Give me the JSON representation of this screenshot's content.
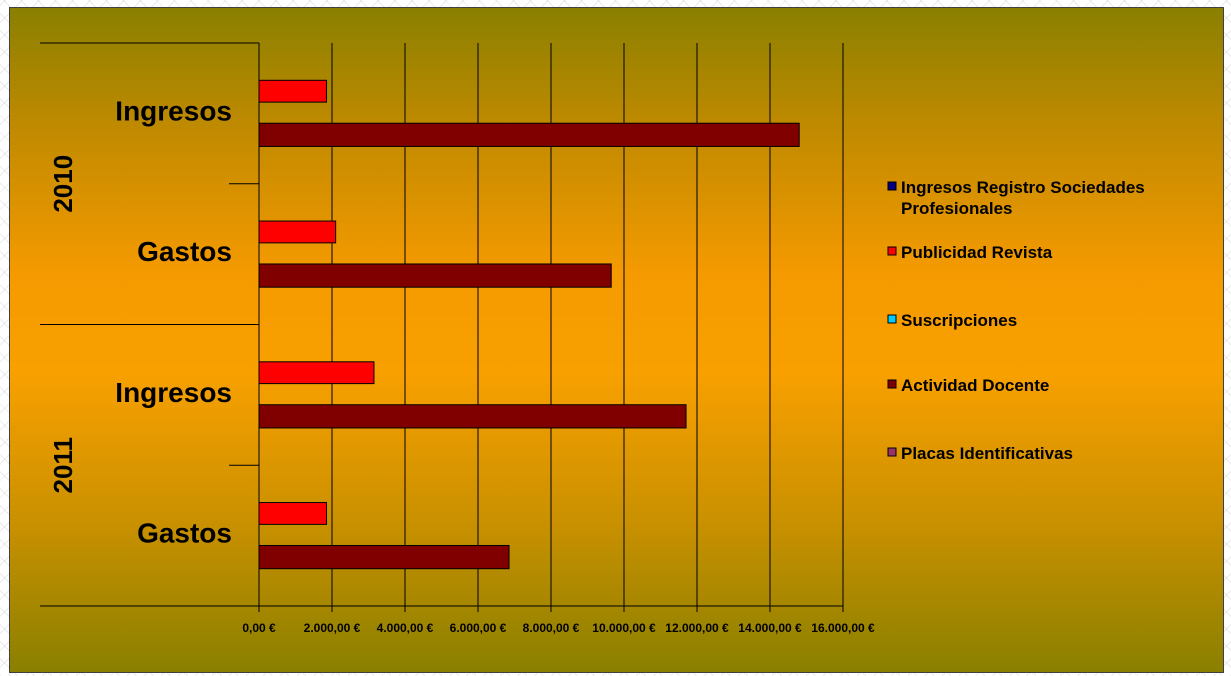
{
  "chart_data": {
    "type": "bar",
    "orientation": "horizontal",
    "groups": [
      {
        "year": "2010",
        "categories": [
          "Ingresos",
          "Gastos"
        ]
      },
      {
        "year": "2011",
        "categories": [
          "Ingresos",
          "Gastos"
        ]
      }
    ],
    "categories": [
      "2010 Ingresos",
      "2010 Gastos",
      "2011 Ingresos",
      "2011 Gastos"
    ],
    "series": [
      {
        "name": "Ingresos Registro Sociedades Profesionales",
        "color": "#000080",
        "values": [
          0,
          0,
          0,
          0
        ]
      },
      {
        "name": "Publicidad Revista",
        "color": "#ff0000",
        "values": [
          1850,
          2100,
          3150,
          1850
        ]
      },
      {
        "name": "Suscripciones",
        "color": "#00ccff",
        "values": [
          0,
          0,
          0,
          0
        ]
      },
      {
        "name": "Actividad Docente",
        "color": "#800000",
        "values": [
          14800,
          9650,
          11700,
          6850
        ]
      },
      {
        "name": "Placas Identificativas",
        "color": "#993366",
        "values": [
          0,
          0,
          0,
          0
        ]
      }
    ],
    "x_ticks": [
      "0,00 €",
      "2.000,00 €",
      "4.000,00 €",
      "6.000,00 €",
      "8.000,00 €",
      "10.000,00 €",
      "12.000,00 €",
      "14.000,00 €",
      "16.000,00 €"
    ],
    "xlim": [
      0,
      16000
    ],
    "grid": true,
    "legend_position": "right"
  }
}
